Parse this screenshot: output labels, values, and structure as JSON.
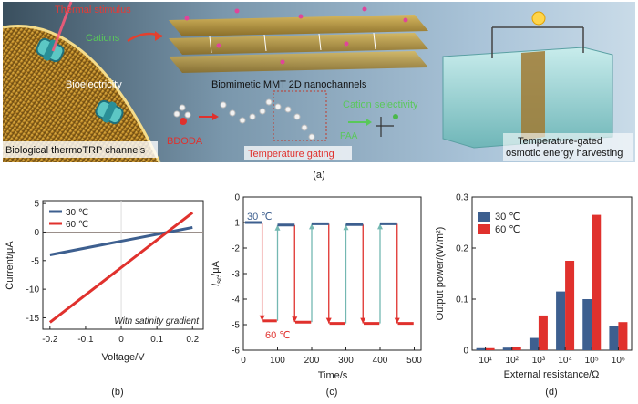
{
  "colors": {
    "blue": "#3d5f8f",
    "red": "#e0312d",
    "teal": "#74b8b2",
    "axis": "#222222",
    "zero": "#9a8f8a"
  },
  "panel_a": {
    "label": "(a)",
    "texts": {
      "thermal": "Thermal stimulus",
      "cations": "Cations",
      "bioelectricity": "Bioelectricity",
      "channels": "Biological thermoTRP channels",
      "mmt": "Biomimetic MMT 2D nanochannels",
      "bdoda": "BDODA",
      "gating": "Temperature gating",
      "selectivity": "Cation selectivity",
      "paa": "PAA",
      "harvest1": "Temperature-gated",
      "harvest2": "osmotic energy harvesting"
    }
  },
  "chart_data": [
    {
      "id": "b",
      "type": "line",
      "panel_label": "(b)",
      "xlabel": "Voltage/V",
      "ylabel": "Current/μA",
      "xlim": [
        -0.22,
        0.23
      ],
      "ylim": [
        -17,
        5.5
      ],
      "xticks": [
        -0.2,
        -0.1,
        0,
        0.1,
        0.2
      ],
      "xtick_labels": [
        "-0.2",
        "-0.1",
        "0",
        "0.1",
        "0.2"
      ],
      "yticks": [
        -15,
        -10,
        -5,
        0,
        5
      ],
      "ytick_labels": [
        "-15",
        "-10",
        "-5",
        "0",
        "5"
      ],
      "annotation": "With satinity gradient",
      "legend_position": "top-left",
      "series": [
        {
          "name": "30 ℃",
          "color": "#3d5f8f",
          "x": [
            -0.2,
            0.2
          ],
          "y": [
            -4.0,
            0.8
          ]
        },
        {
          "name": "60 ℃",
          "color": "#e0312d",
          "x": [
            -0.2,
            0.2
          ],
          "y": [
            -15.8,
            3.4
          ]
        }
      ]
    },
    {
      "id": "c",
      "type": "line",
      "panel_label": "(c)",
      "xlabel": "Time/s",
      "ylabel_main": "I",
      "ylabel_sub": "sc",
      "ylabel_unit": "/μA",
      "xlim": [
        0,
        520
      ],
      "ylim": [
        -6,
        0
      ],
      "xticks": [
        0,
        100,
        200,
        300,
        400,
        500
      ],
      "xtick_labels": [
        "0",
        "100",
        "200",
        "300",
        "400",
        "500"
      ],
      "yticks": [
        -6,
        -5,
        -4,
        -3,
        -2,
        -1,
        0
      ],
      "ytick_labels": [
        "-6",
        "-5",
        "-4",
        "-3",
        "-2",
        "-1",
        "0"
      ],
      "label_30": "30 ℃",
      "label_60": "60 ℃",
      "cycles_30": [
        [
          5,
          55
        ],
        [
          100,
          150
        ],
        [
          200,
          250
        ],
        [
          300,
          350
        ],
        [
          400,
          450
        ]
      ],
      "value_30": [
        -1.0,
        -1.1,
        -1.05,
        -1.08,
        -1.05
      ],
      "cycles_60": [
        [
          55,
          100
        ],
        [
          150,
          200
        ],
        [
          250,
          300
        ],
        [
          350,
          400
        ],
        [
          450,
          500
        ]
      ],
      "value_60": [
        -4.85,
        -4.9,
        -4.95,
        -4.95,
        -4.95
      ]
    },
    {
      "id": "d",
      "type": "bar",
      "panel_label": "(d)",
      "xlabel": "External resistance/Ω",
      "ylabel": "Output power/(W/m²)",
      "ylim": [
        0,
        0.3
      ],
      "yticks": [
        0,
        0.1,
        0.2,
        0.3
      ],
      "ytick_labels": [
        "0",
        "0.1",
        "0.2",
        "0.3"
      ],
      "categories": [
        "10¹",
        "10²",
        "10³",
        "10⁴",
        "10⁵",
        "10⁶"
      ],
      "legend_position": "top-left",
      "series": [
        {
          "name": "30 ℃",
          "color": "#3d5f8f",
          "values": [
            0.004,
            0.005,
            0.024,
            0.115,
            0.1,
            0.047
          ]
        },
        {
          "name": "60 ℃",
          "color": "#e0312d",
          "values": [
            0.004,
            0.006,
            0.068,
            0.175,
            0.265,
            0.055
          ]
        }
      ]
    }
  ]
}
